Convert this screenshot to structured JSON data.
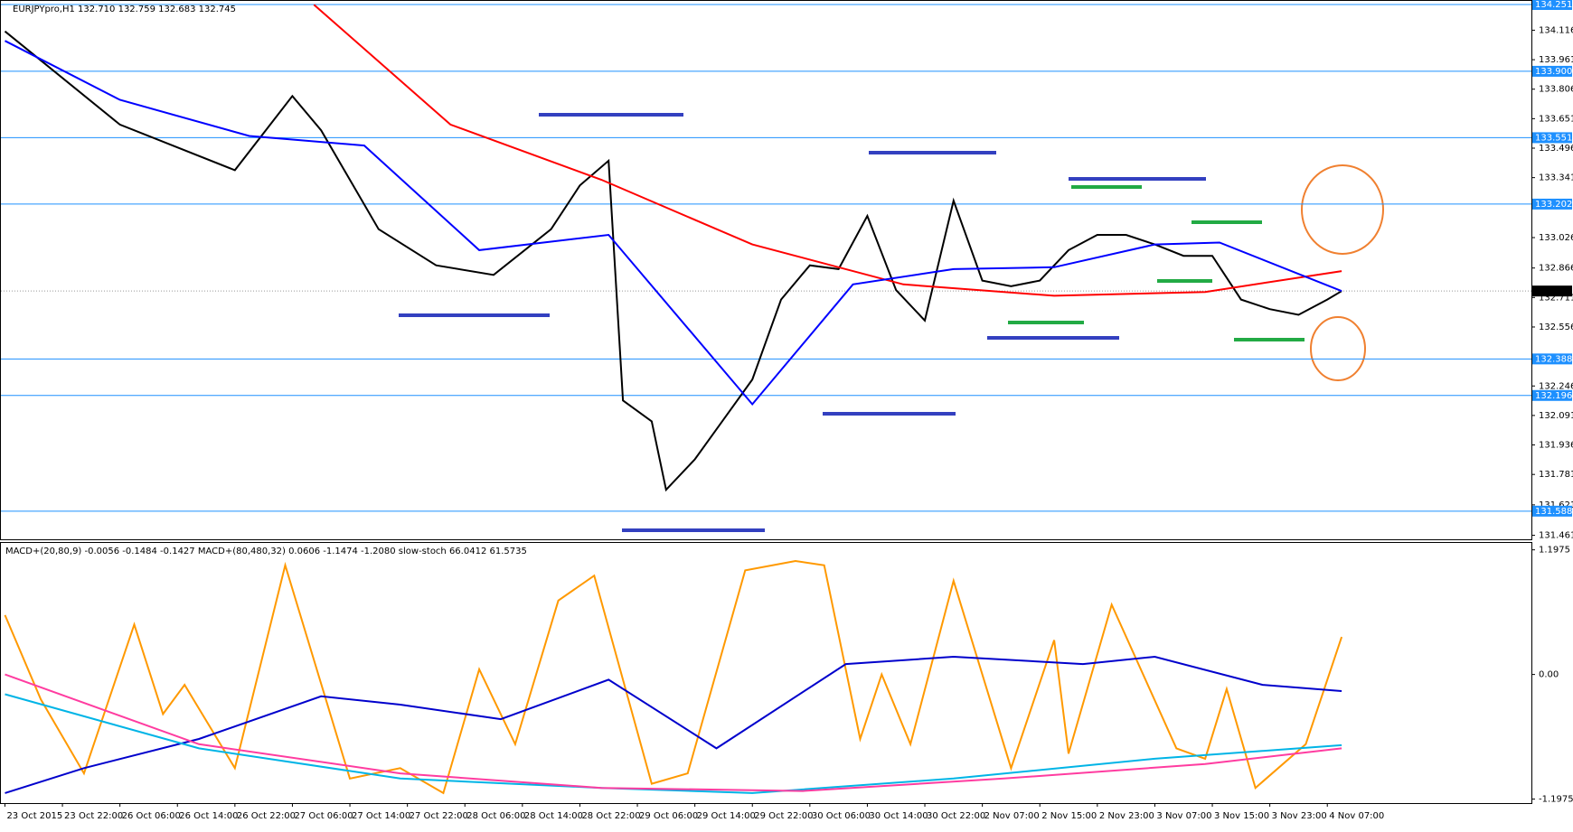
{
  "chart_data": [
    {
      "type": "line",
      "title": "EURJPYpro,H1  132.710 132.759 132.683 132.745",
      "xlim": [
        -0.56,
        212.4
      ],
      "ylim": [
        131.44,
        134.27
      ],
      "yticks": [
        134.116,
        133.961,
        133.806,
        133.651,
        133.496,
        133.341,
        133.026,
        132.866,
        132.711,
        132.556,
        132.246,
        132.091,
        131.936,
        131.781,
        131.621,
        131.461
      ],
      "hlines": [
        134.251,
        133.9,
        133.551,
        133.202,
        132.388,
        132.196,
        131.588
      ],
      "hline_labels": [
        "134.251",
        "133.900",
        "133.551",
        "133.202",
        "132.388",
        "132.196",
        "131.588"
      ],
      "hline_color": "#1e90ff",
      "last_price": 132.745,
      "series": [
        {
          "color": "#000000",
          "x": [
            0,
            16,
            32,
            40,
            44,
            52,
            60,
            68,
            76,
            80,
            84,
            86,
            90,
            92,
            96,
            100,
            104,
            108,
            112,
            116,
            120,
            124,
            128,
            132,
            136,
            140,
            144,
            148,
            152,
            156,
            160,
            164,
            168,
            172,
            176,
            180,
            184,
            186
          ],
          "values": [
            134.11,
            133.62,
            133.38,
            133.77,
            133.59,
            133.07,
            132.88,
            132.83,
            133.07,
            133.3,
            133.43,
            132.17,
            132.06,
            131.7,
            131.86,
            132.07,
            132.28,
            132.7,
            132.88,
            132.86,
            133.14,
            132.75,
            132.59,
            133.22,
            132.8,
            132.77,
            132.8,
            132.96,
            133.04,
            133.04,
            132.99,
            132.93,
            132.93,
            132.7,
            132.65,
            132.62,
            132.7,
            132.745
          ]
        },
        {
          "color": "#ff0000",
          "x": [
            43,
            62,
            83,
            104,
            125,
            146,
            167,
            186
          ],
          "values": [
            134.25,
            133.62,
            133.33,
            132.99,
            132.78,
            132.72,
            132.74,
            132.85
          ]
        },
        {
          "color": "#0000ff",
          "x": [
            0,
            16,
            34,
            50,
            66,
            84,
            104,
            118,
            132,
            146,
            160,
            169,
            186
          ],
          "values": [
            134.06,
            133.75,
            133.56,
            133.51,
            132.96,
            133.04,
            132.15,
            132.78,
            132.86,
            132.87,
            132.99,
            133.0,
            132.745
          ]
        }
      ]
    },
    {
      "type": "line",
      "title": "MACD+(20,80,9) -0.0056 -0.1484 -0.1427  MACD+(80,480,32) 0.0606 -1.1474 -1.2080  slow-stoch 66.0412 61.5735",
      "xlim": [
        -0.56,
        212.4
      ],
      "ylim": [
        -1.236,
        1.264
      ],
      "yticks": [
        1.1975,
        {
          "value": 0,
          "label": "0.00"
        },
        -1.1975
      ],
      "xticks": [
        {
          "value": 0,
          "label": "23 Oct 2015"
        },
        {
          "value": 8,
          "label": "23 Oct 22:00"
        },
        {
          "value": 16,
          "label": "26 Oct 06:00"
        },
        {
          "value": 24,
          "label": "26 Oct 14:00"
        },
        {
          "value": 32,
          "label": "26 Oct 22:00"
        },
        {
          "value": 40,
          "label": "27 Oct 06:00"
        },
        {
          "value": 48,
          "label": "27 Oct 14:00"
        },
        {
          "value": 56,
          "label": "27 Oct 22:00"
        },
        {
          "value": 64,
          "label": "28 Oct 06:00"
        },
        {
          "value": 72,
          "label": "28 Oct 14:00"
        },
        {
          "value": 80,
          "label": "28 Oct 22:00"
        },
        {
          "value": 88,
          "label": "29 Oct 06:00"
        },
        {
          "value": 96,
          "label": "29 Oct 14:00"
        },
        {
          "value": 104,
          "label": "29 Oct 22:00"
        },
        {
          "value": 112,
          "label": "30 Oct 06:00"
        },
        {
          "value": 120,
          "label": "30 Oct 14:00"
        },
        {
          "value": 128,
          "label": "30 Oct 22:00"
        },
        {
          "value": 136,
          "label": "2 Nov 07:00"
        },
        {
          "value": 144,
          "label": "2 Nov 15:00"
        },
        {
          "value": 152,
          "label": "2 Nov 23:00"
        },
        {
          "value": 160,
          "label": "3 Nov 07:00"
        },
        {
          "value": 168,
          "label": "3 Nov 15:00"
        },
        {
          "value": 176,
          "label": "3 Nov 23:00"
        },
        {
          "value": 184,
          "label": "4 Nov 07:00"
        }
      ],
      "series": [
        {
          "color": "#ff9900",
          "x": [
            0,
            5,
            11,
            18,
            22,
            25,
            32,
            39,
            48,
            55,
            61,
            66,
            71,
            77,
            82,
            90,
            95,
            103,
            110,
            114,
            119,
            122,
            126,
            132,
            140,
            146,
            148,
            154,
            163,
            167,
            170,
            174,
            181,
            186
          ],
          "values": [
            0.57,
            -0.24,
            -0.95,
            0.48,
            -0.38,
            -0.1,
            -0.9,
            1.05,
            -1.0,
            -0.9,
            -1.14,
            0.05,
            -0.67,
            0.71,
            0.95,
            -1.05,
            -0.95,
            1.0,
            1.09,
            1.05,
            -0.62,
            0,
            -0.67,
            0.9,
            -0.9,
            0.33,
            -0.76,
            0.67,
            -0.71,
            -0.81,
            -0.14,
            -1.09,
            -0.67,
            0.36
          ]
        },
        {
          "color": "#0000cc",
          "x": [
            0,
            11,
            27,
            44,
            55,
            69,
            84,
            99,
            117,
            132,
            150,
            160,
            175,
            186
          ],
          "values": [
            -1.14,
            -0.9,
            -0.62,
            -0.21,
            -0.29,
            -0.43,
            -0.05,
            -0.71,
            0.1,
            0.17,
            0.1,
            0.17,
            -0.1,
            -0.16
          ]
        },
        {
          "color": "#00b4e6",
          "x": [
            0,
            27,
            55,
            83,
            104,
            132,
            160,
            186
          ],
          "values": [
            -0.19,
            -0.71,
            -1.0,
            -1.09,
            -1.14,
            -1.0,
            -0.81,
            -0.68
          ]
        },
        {
          "color": "#ff3ca0",
          "x": [
            0,
            27,
            55,
            83,
            111,
            139,
            167,
            186
          ],
          "values": [
            0,
            -0.67,
            -0.95,
            -1.09,
            -1.12,
            -1.0,
            -0.86,
            -0.71
          ]
        }
      ]
    }
  ]
}
